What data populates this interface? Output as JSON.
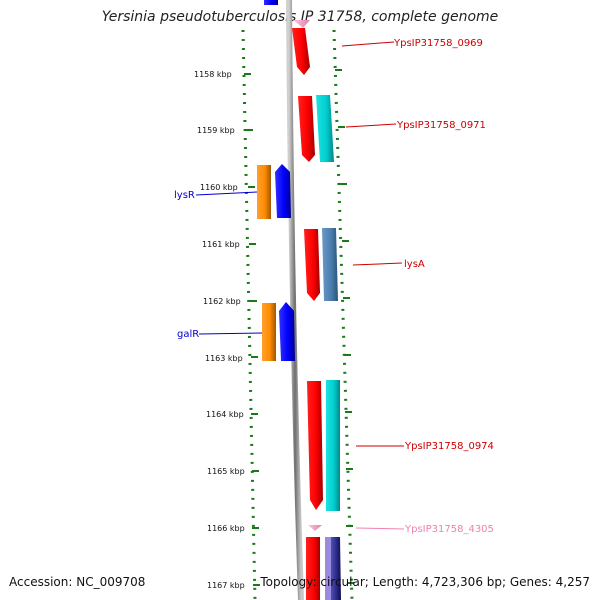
{
  "title": "Yersinia pseudotuberculosis IP 31758, complete genome",
  "footer": {
    "accession": "Accession: NC_009708",
    "topology": "Topology: circular; Length: 4,723,306 bp; Genes: 4,257"
  },
  "ruler": {
    "ticks": [
      "1158 kbp",
      "1159 kbp",
      "1160 kbp",
      "1161 kbp",
      "1162 kbp",
      "1163 kbp",
      "1164 kbp",
      "1165 kbp",
      "1166 kbp",
      "1167 kbp"
    ]
  },
  "genes": {
    "YpsIP31758_0969": "YpsIP31758_0969",
    "YpsIP31758_0971": "YpsIP31758_0971",
    "lysR": "lysR",
    "lysA": "lysA",
    "galR": "galR",
    "YpsIP31758_0974": "YpsIP31758_0974",
    "YpsIP31758_4305": "YpsIP31758_4305"
  },
  "colors": {
    "label_red": "#cc0000",
    "label_blue": "#0000cc",
    "label_pink": "#f080b0",
    "ruler_green": "#1a7a1a",
    "backbone": "#8a8a8a",
    "red": "#ff0000",
    "cyan": "#00d8d8",
    "steel": "#4a7fb0",
    "orange": "#ff8c00",
    "blue": "#0000ff",
    "navy": "#22228a",
    "pink": "#f4a0c0"
  }
}
